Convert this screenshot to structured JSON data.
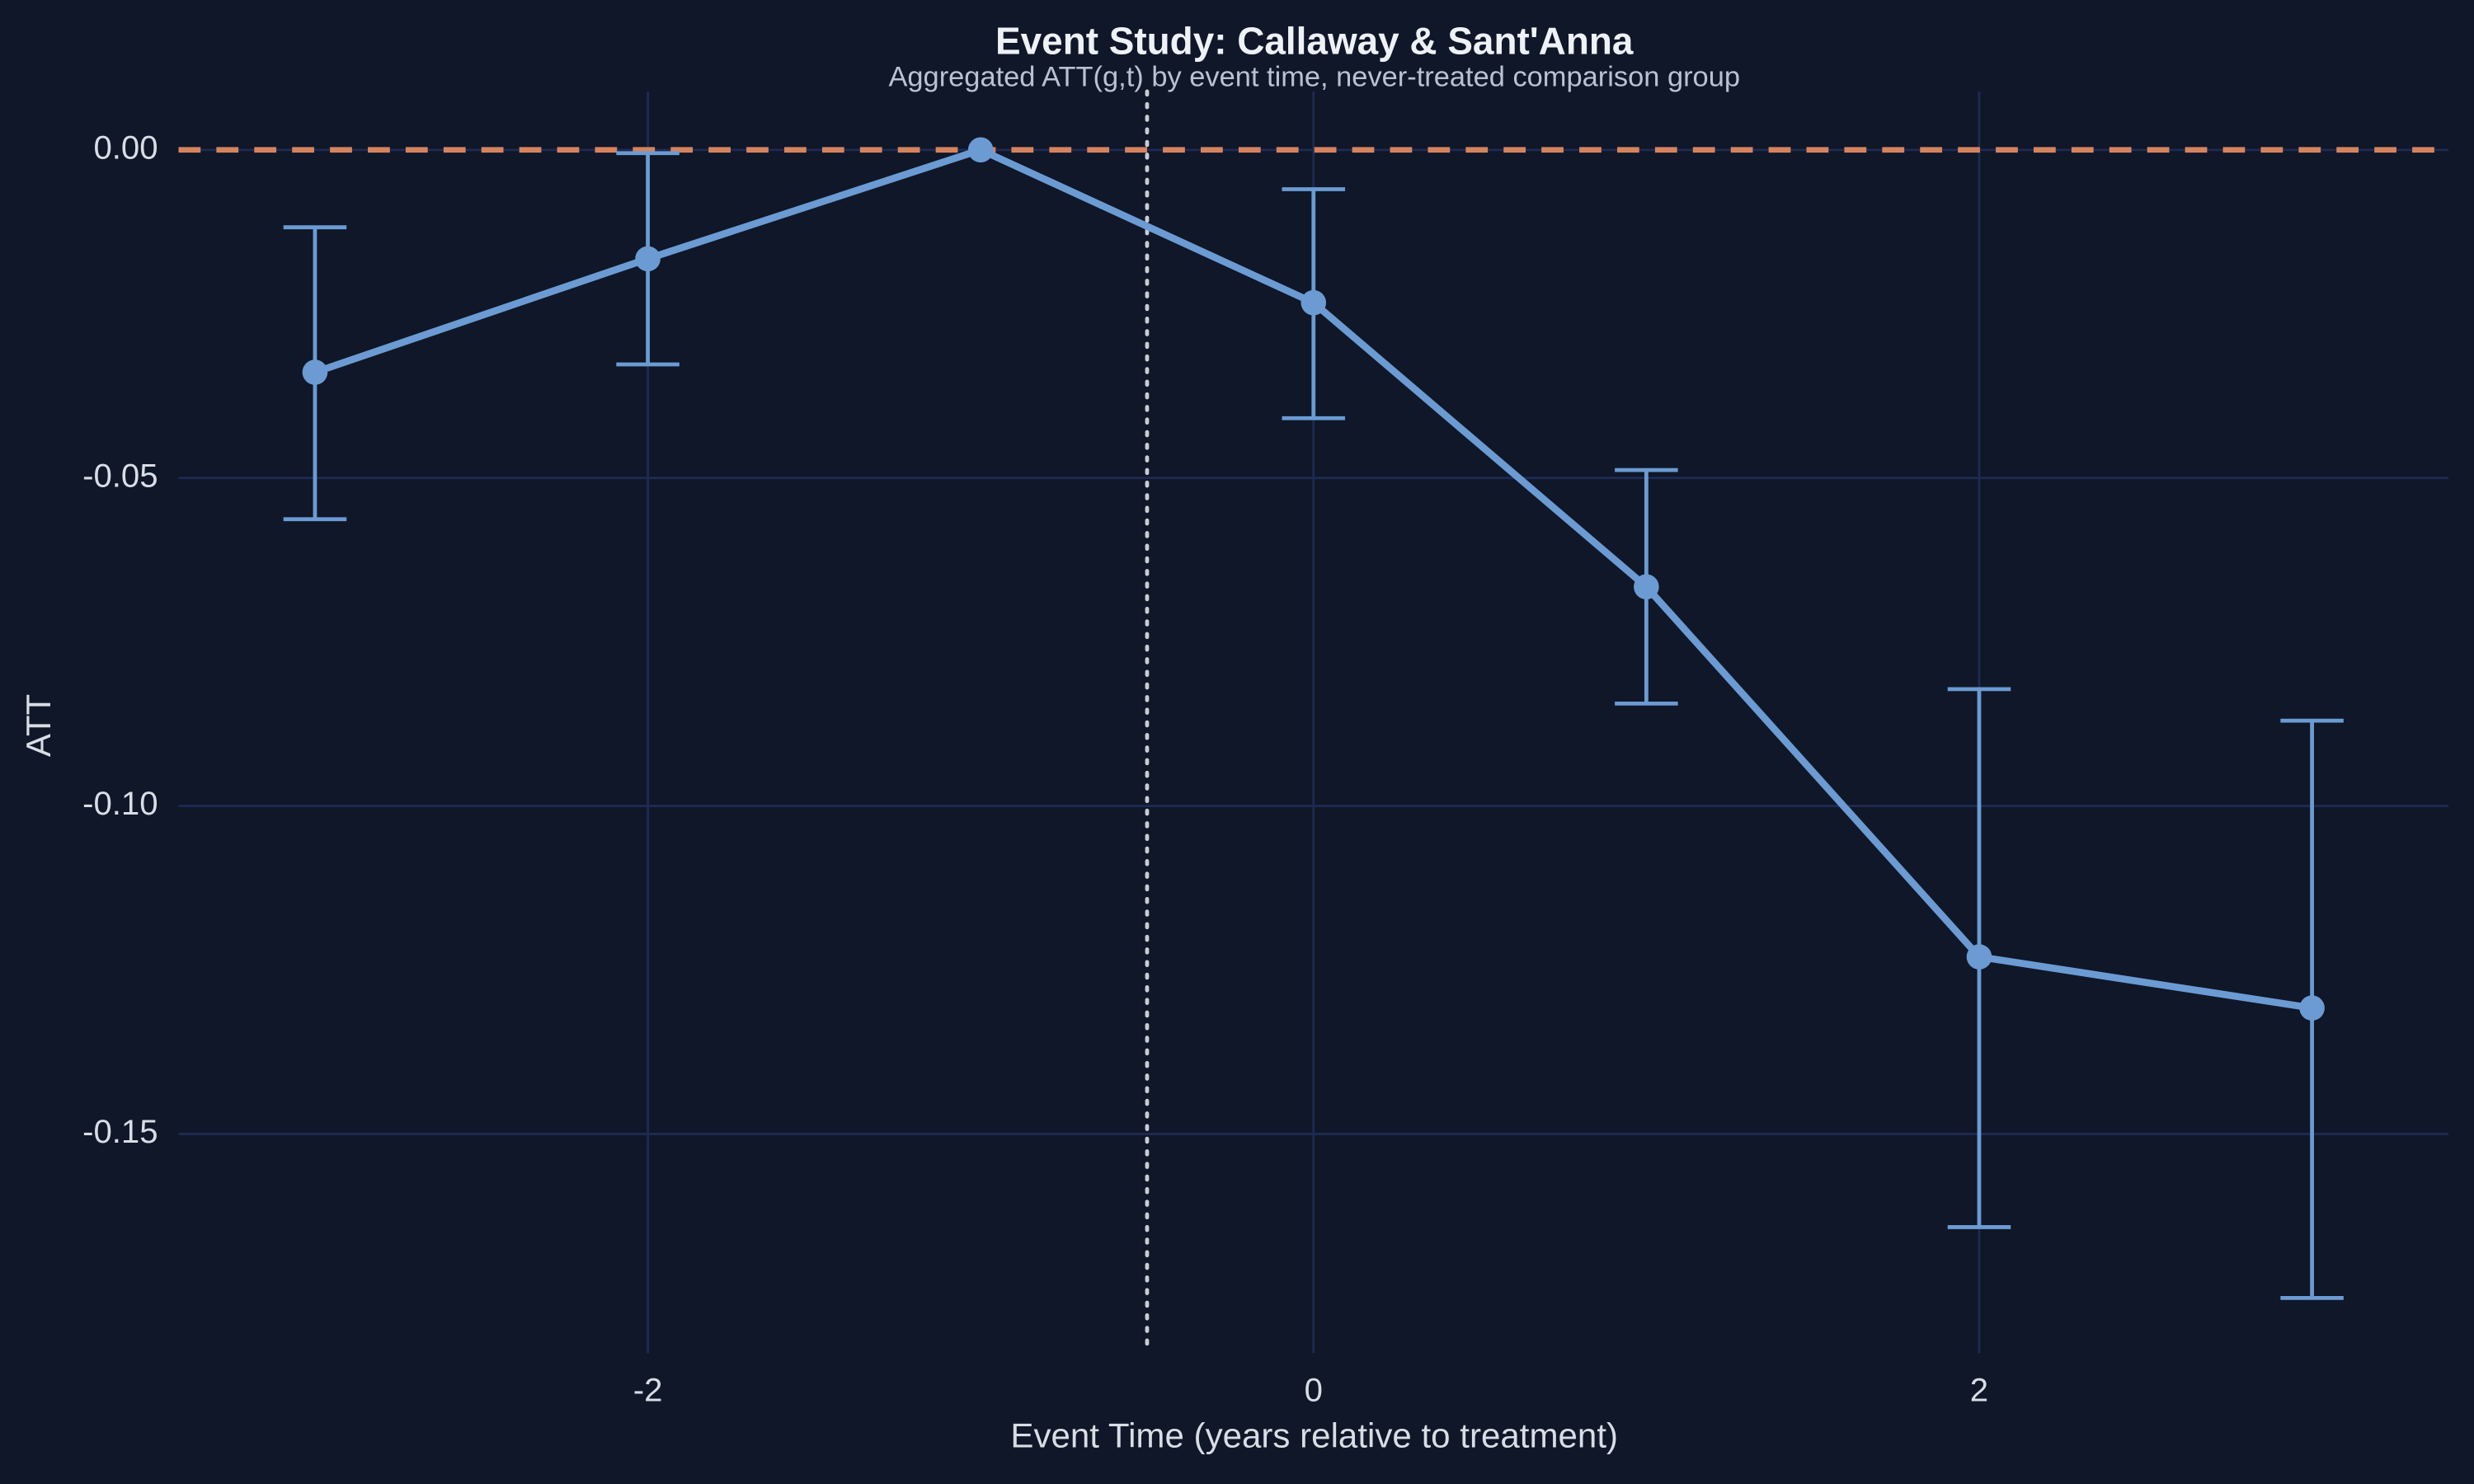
{
  "chart_data": {
    "type": "line",
    "title": "Event Study: Callaway & Sant'Anna",
    "subtitle": "Aggregated ATT(g,t) by event time, never-treated comparison group",
    "x_label": "Event Time (years relative to treatment)",
    "y_label": "ATT",
    "x": [
      -3,
      -2,
      -1,
      0,
      1,
      2,
      3
    ],
    "series": [
      {
        "color": "#6b9bd2",
        "values": [
          -0.0339,
          -0.0166,
          0,
          -0.0233,
          -0.0666,
          -0.123,
          -0.1308
        ],
        "ci_lower": [
          -0.0563,
          -0.0327,
          null,
          -0.0409,
          -0.0844,
          -0.1642,
          -0.175
        ],
        "ci_upper": [
          -0.0118,
          -0.0005,
          null,
          -0.006,
          -0.0488,
          -0.0822,
          -0.087
        ]
      }
    ],
    "xlim": [
      -3.41,
      3.41
    ],
    "ylim": [
      -0.1834,
      0.0089
    ],
    "xticks": [
      -2,
      0,
      2
    ],
    "yticks": [
      {
        "value": 0,
        "label": "0.00"
      },
      -0.05,
      {
        "value": -0.1,
        "label": "-0.10"
      },
      -0.15
    ],
    "grid": true,
    "hline": {
      "value": 0,
      "color": "#d4845f"
    },
    "vline": {
      "value": -0.5,
      "color": "#c8ccd4"
    }
  }
}
